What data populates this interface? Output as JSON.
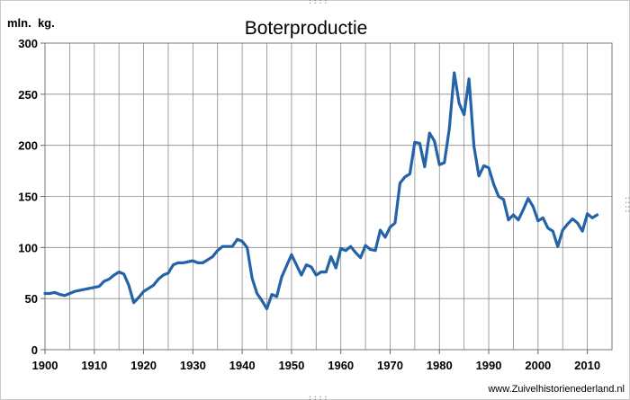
{
  "chart_data": {
    "type": "line",
    "title": "Boterproductie",
    "ylabel": "mln.  kg.",
    "xlabel": "",
    "xlim": [
      1900,
      2015
    ],
    "ylim": [
      0,
      300
    ],
    "grid": true,
    "legend": "none",
    "x_ticks": [
      "1900",
      "1910",
      "1920",
      "1930",
      "1940",
      "1950",
      "1960",
      "1970",
      "1980",
      "1990",
      "2000",
      "2010"
    ],
    "y_ticks": [
      "0",
      "50",
      "100",
      "150",
      "200",
      "250",
      "300"
    ],
    "series_color": "#2563a8",
    "x": [
      1900,
      1901,
      1902,
      1903,
      1904,
      1905,
      1906,
      1907,
      1908,
      1909,
      1910,
      1911,
      1912,
      1913,
      1914,
      1915,
      1916,
      1917,
      1918,
      1919,
      1920,
      1921,
      1922,
      1923,
      1924,
      1925,
      1926,
      1927,
      1928,
      1929,
      1930,
      1931,
      1932,
      1933,
      1934,
      1935,
      1936,
      1937,
      1938,
      1939,
      1940,
      1941,
      1942,
      1943,
      1944,
      1945,
      1946,
      1947,
      1948,
      1949,
      1950,
      1951,
      1952,
      1953,
      1954,
      1955,
      1956,
      1957,
      1958,
      1959,
      1960,
      1961,
      1962,
      1963,
      1964,
      1965,
      1966,
      1967,
      1968,
      1969,
      1970,
      1971,
      1972,
      1973,
      1974,
      1975,
      1976,
      1977,
      1978,
      1979,
      1980,
      1981,
      1982,
      1983,
      1984,
      1985,
      1986,
      1987,
      1988,
      1989,
      1990,
      1991,
      1992,
      1993,
      1994,
      1995,
      1996,
      1997,
      1998,
      1999,
      2000,
      2001,
      2002,
      2003,
      2004,
      2005,
      2006,
      2007,
      2008,
      2009,
      2010,
      2011,
      2012
    ],
    "values": [
      55,
      55,
      56,
      54,
      53,
      55,
      57,
      58,
      59,
      60,
      61,
      62,
      67,
      69,
      73,
      76,
      74,
      63,
      46,
      51,
      57,
      60,
      63,
      69,
      73,
      75,
      83,
      85,
      85,
      86,
      87,
      85,
      85,
      88,
      91,
      97,
      101,
      101,
      101,
      108,
      106,
      100,
      70,
      55,
      48,
      40,
      54,
      52,
      71,
      82,
      93,
      83,
      73,
      83,
      81,
      73,
      76,
      76,
      91,
      80,
      99,
      97,
      101,
      95,
      90,
      102,
      98,
      97,
      117,
      110,
      120,
      124,
      163,
      169,
      172,
      203,
      202,
      179,
      212,
      204,
      181,
      183,
      216,
      271,
      241,
      230,
      265,
      199,
      170,
      180,
      178,
      162,
      150,
      147,
      127,
      132,
      127,
      137,
      148,
      140,
      126,
      129,
      119,
      116,
      101,
      117,
      123,
      128,
      124,
      116,
      133,
      129,
      132
    ]
  },
  "credit": "www.Zuivelhistorienederland.nl"
}
